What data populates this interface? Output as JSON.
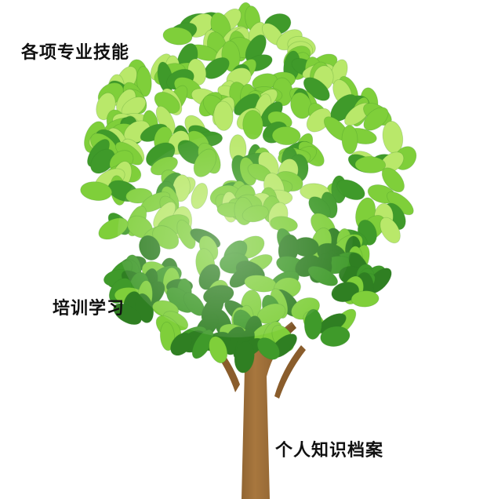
{
  "labels": {
    "skills": "各项专业技能",
    "training": "培训学习",
    "archive": "个人知识档案"
  },
  "illustration": {
    "icon": "tree-icon",
    "colors": {
      "trunk": "#9a6b34",
      "trunk_dark": "#6e4a22",
      "leaf_light": "#b9e86a",
      "leaf_mid": "#7fcf3a",
      "leaf_dark": "#3f9a2a",
      "leaf_deep": "#2f7f22"
    }
  }
}
